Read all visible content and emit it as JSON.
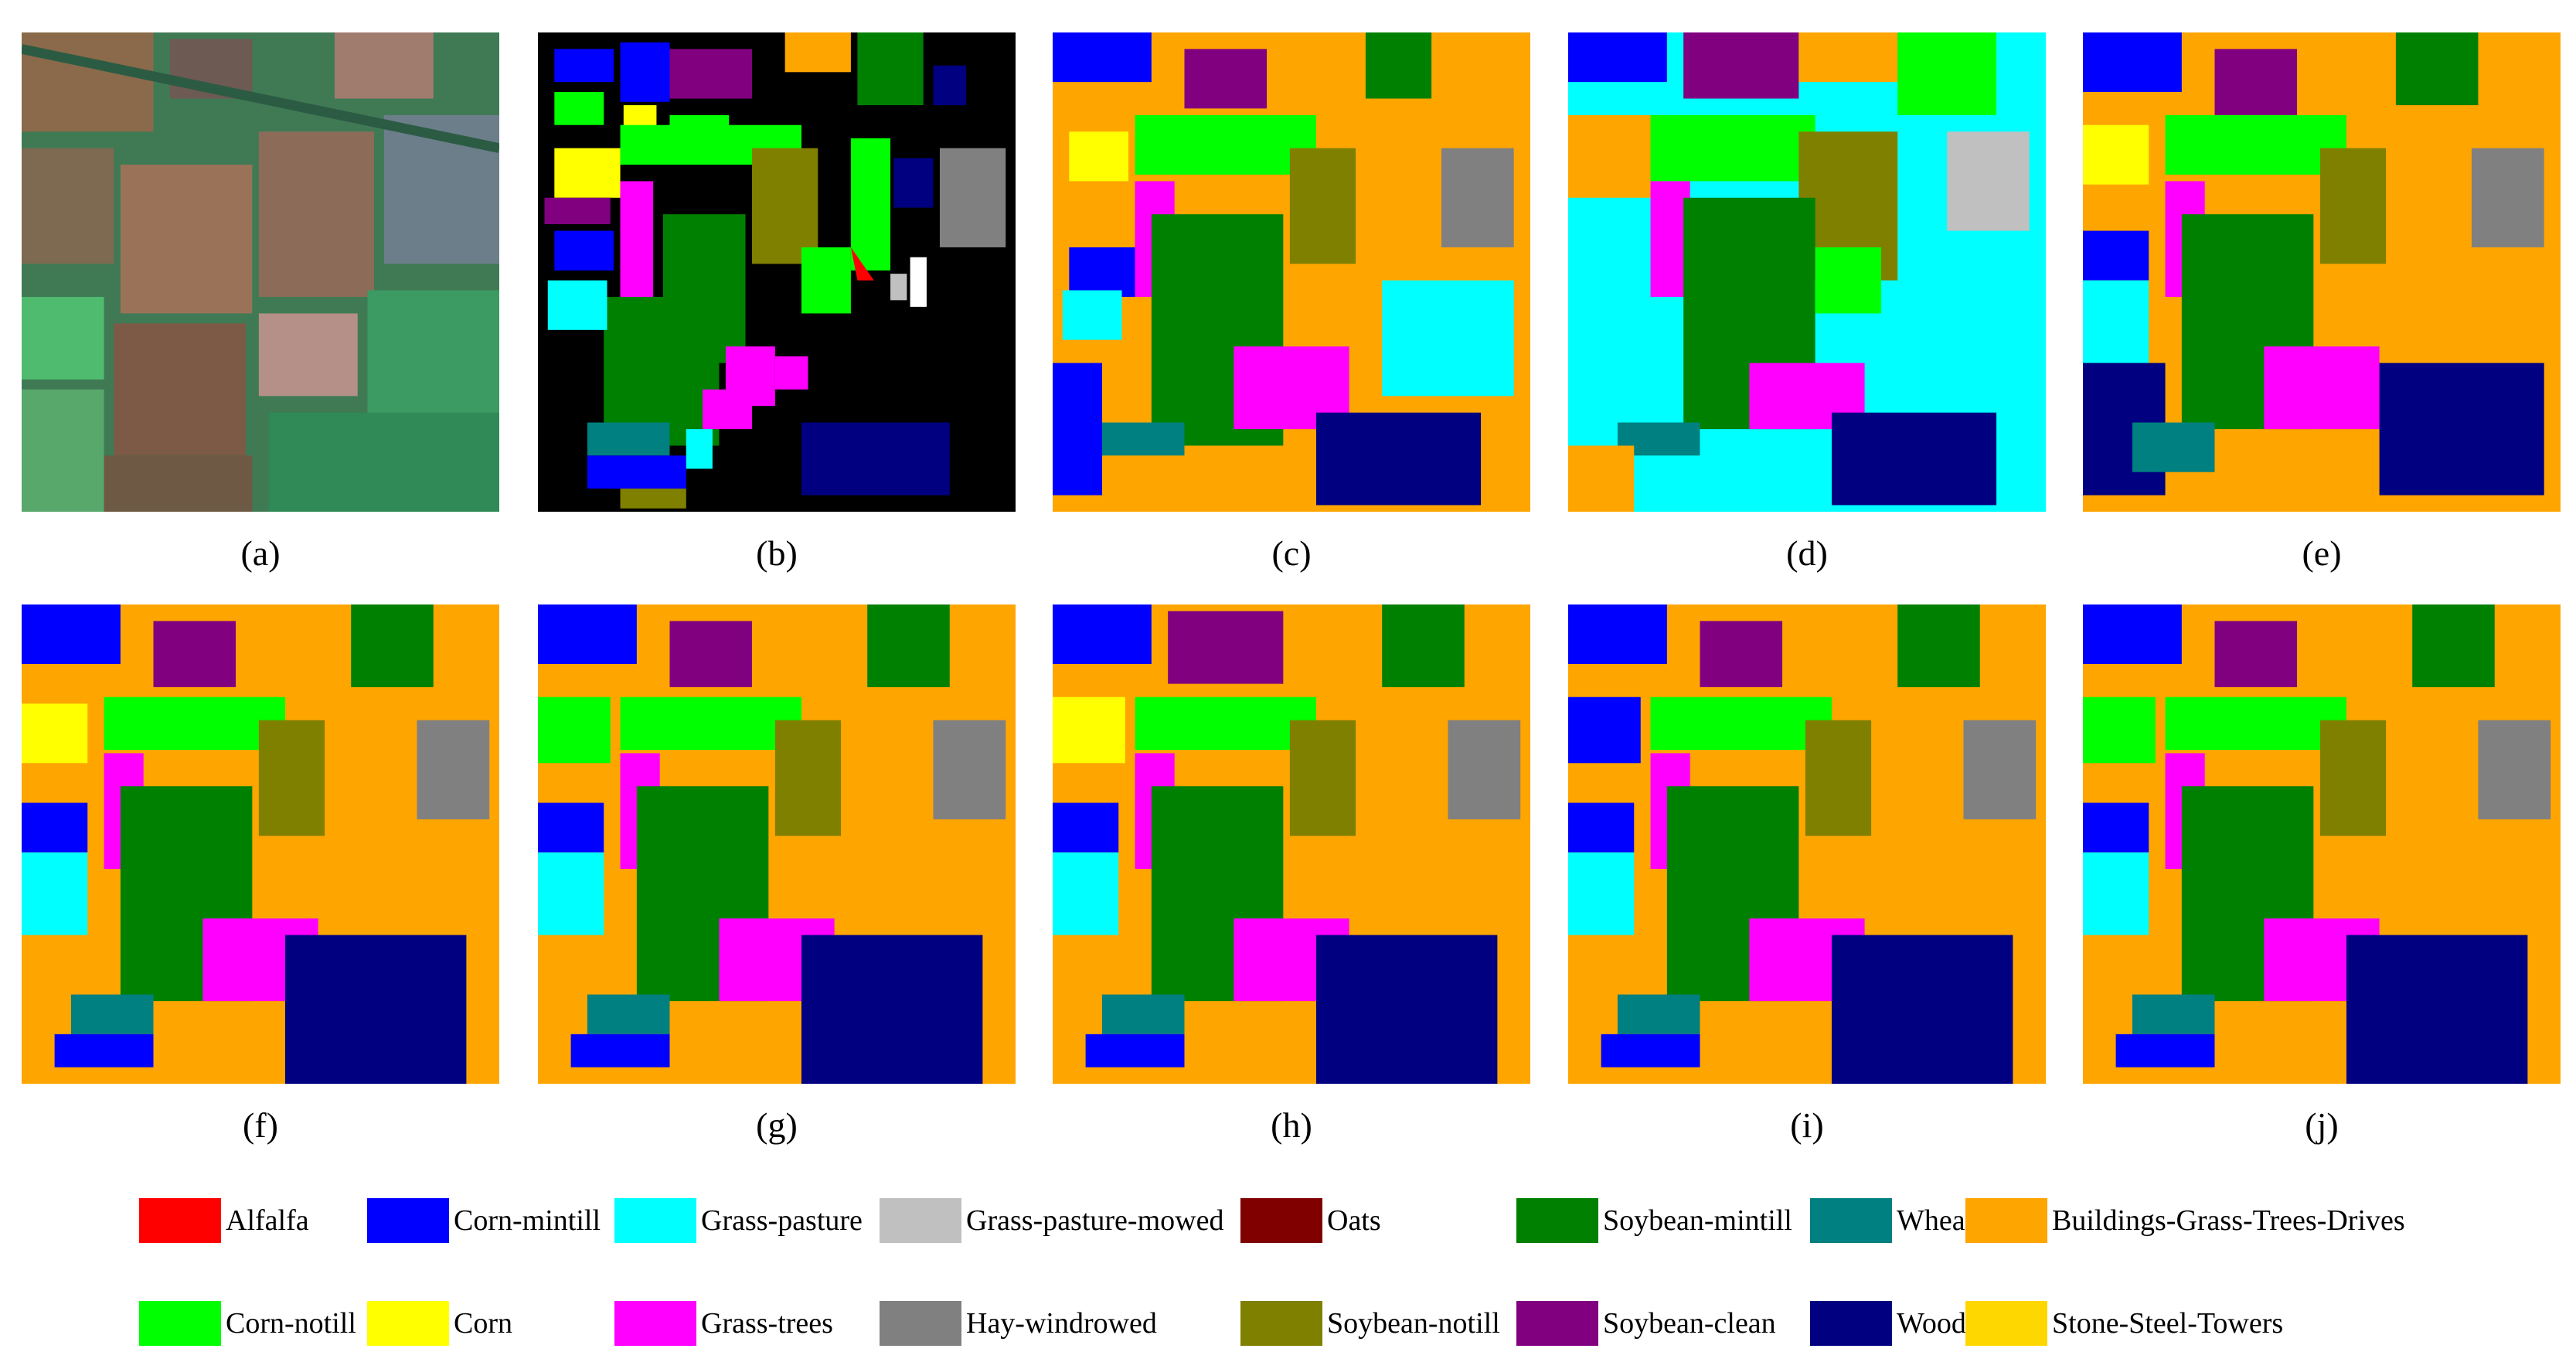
{
  "panels": [
    {
      "id": "a",
      "caption": "(a)",
      "kind": "rgb"
    },
    {
      "id": "b",
      "caption": "(b)",
      "kind": "groundtruth"
    },
    {
      "id": "c",
      "caption": "(c)",
      "kind": "noisy-map"
    },
    {
      "id": "d",
      "caption": "(d)",
      "kind": "noisy-map"
    },
    {
      "id": "e",
      "caption": "(e)",
      "kind": "smooth-map"
    },
    {
      "id": "f",
      "caption": "(f)",
      "kind": "smooth-map"
    },
    {
      "id": "g",
      "caption": "(g)",
      "kind": "smooth-map"
    },
    {
      "id": "h",
      "caption": "(h)",
      "kind": "smooth-map"
    },
    {
      "id": "i",
      "caption": "(i)",
      "kind": "smooth-map"
    },
    {
      "id": "j",
      "caption": "(j)",
      "kind": "smooth-map"
    }
  ],
  "legend": [
    {
      "label": "Alfalfa",
      "color": "#ff0000"
    },
    {
      "label": "Corn-mintill",
      "color": "#0000ff"
    },
    {
      "label": "Grass-pasture",
      "color": "#00ffff"
    },
    {
      "label": "Grass-pasture-mowed",
      "color": "#c0c0c0"
    },
    {
      "label": "Oats",
      "color": "#800000"
    },
    {
      "label": "Soybean-mintill",
      "color": "#008000"
    },
    {
      "label": "Wheat",
      "color": "#008080"
    },
    {
      "label": "Buildings-Grass-Trees-Drives",
      "color": "#ffa500"
    },
    {
      "label": "Corn-notill",
      "color": "#00ff00"
    },
    {
      "label": "Corn",
      "color": "#ffff00"
    },
    {
      "label": "Grass-trees",
      "color": "#ff00ff"
    },
    {
      "label": "Hay-windrowed",
      "color": "#808080"
    },
    {
      "label": "Soybean-notill",
      "color": "#808000"
    },
    {
      "label": "Soybean-clean",
      "color": "#800080"
    },
    {
      "label": "Woods",
      "color": "#000080"
    },
    {
      "label": "Stone-Steel-Towers",
      "color": "#ffd700"
    }
  ]
}
